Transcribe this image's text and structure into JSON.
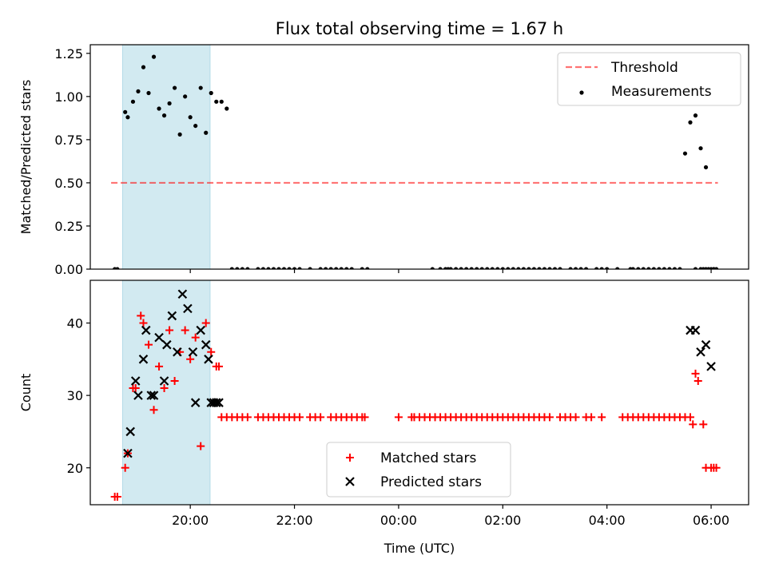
{
  "figure": {
    "title": "Flux total observing time = 1.67 h"
  },
  "colors": {
    "highlight_band": "#add8e6",
    "threshold": "#ff0000",
    "measurements": "#000000",
    "matched": "#ff0000",
    "predicted": "#000000"
  },
  "chart_data": [
    {
      "type": "scatter",
      "xlabel": "",
      "ylabel": "Matched/Predicted stars",
      "xlim": [
        -5.92,
        6.72
      ],
      "ylim": [
        0,
        1.3
      ],
      "yticks": [
        "0.00",
        "0.25",
        "0.50",
        "0.75",
        "1.00",
        "1.25"
      ],
      "ytick_values": [
        0,
        0.25,
        0.5,
        0.75,
        1.0,
        1.25
      ],
      "highlight_span": [
        -5.3,
        -3.62
      ],
      "legend": {
        "placement": "top-right",
        "entries": [
          "Threshold",
          "Measurements"
        ]
      },
      "threshold": {
        "name": "Threshold",
        "value": 0.5,
        "x_range": [
          -5.52,
          6.13
        ]
      },
      "series": [
        {
          "name": "Measurements",
          "marker": "dot",
          "x": [
            -5.45,
            -5.4,
            -5.25,
            -5.2,
            -5.1,
            -5.0,
            -4.9,
            -4.8,
            -4.7,
            -4.6,
            -4.5,
            -4.4,
            -4.3,
            -4.2,
            -4.1,
            -4.0,
            -3.9,
            -3.8,
            -3.7,
            -3.6,
            -3.5,
            -3.4,
            -3.3,
            -3.2,
            -3.1,
            -3.0,
            -2.9,
            -2.7,
            -2.6,
            -2.5,
            -2.4,
            -2.3,
            -2.2,
            -2.1,
            -2.0,
            -1.9,
            -1.7,
            -1.5,
            -1.4,
            -1.3,
            -1.2,
            -1.1,
            -1.0,
            -0.9,
            -0.7,
            -0.6,
            0.65,
            0.8,
            0.9,
            0.95,
            1.0,
            1.1,
            1.2,
            1.3,
            1.4,
            1.5,
            1.6,
            1.7,
            1.8,
            1.9,
            2.0,
            2.1,
            2.2,
            2.3,
            2.4,
            2.5,
            2.6,
            2.7,
            2.8,
            2.9,
            3.0,
            3.1,
            3.3,
            3.4,
            3.5,
            3.6,
            3.8,
            3.9,
            4.0,
            4.2,
            4.45,
            4.5,
            4.6,
            4.7,
            4.8,
            4.9,
            5.0,
            5.1,
            5.2,
            5.3,
            5.4,
            5.5,
            5.6,
            5.7,
            5.8,
            5.9,
            6.0,
            6.05
          ],
          "y": [
            0,
            0,
            0.91,
            0.88,
            0.97,
            1.03,
            1.17,
            1.02,
            1.23,
            0.93,
            0.89,
            0.96,
            1.05,
            0.78,
            1.0,
            0.88,
            0.83,
            1.05,
            0.79,
            1.02,
            0.97,
            0.97,
            0.93,
            0,
            0,
            0,
            0,
            0,
            0,
            0,
            0,
            0,
            0,
            0,
            0,
            0,
            0,
            0,
            0,
            0,
            0,
            0,
            0,
            0,
            0,
            0,
            0,
            0,
            0,
            0,
            0,
            0,
            0,
            0,
            0,
            0,
            0,
            0,
            0,
            0,
            0,
            0,
            0,
            0,
            0,
            0,
            0,
            0,
            0,
            0,
            0,
            0,
            0,
            0,
            0,
            0,
            0,
            0,
            0,
            0,
            0,
            0,
            0,
            0,
            0,
            0,
            0,
            0,
            0,
            0,
            0,
            0.67,
            0.85,
            0.89,
            0.7,
            0.59,
            0,
            0
          ],
          "x_tail": [
            5.7,
            5.8,
            5.85,
            5.9,
            5.95,
            6.05,
            6.1
          ]
        }
      ]
    },
    {
      "type": "scatter",
      "xlabel": "Time (UTC)",
      "ylabel": "Count",
      "xlim": [
        -5.92,
        6.72
      ],
      "ylim": [
        14.9,
        45.9
      ],
      "xticks": [
        "20:00",
        "22:00",
        "00:00",
        "02:00",
        "04:00",
        "06:00"
      ],
      "xtick_values": [
        -4,
        -2,
        0,
        2,
        4,
        6
      ],
      "yticks": [
        "20",
        "30",
        "40"
      ],
      "ytick_values": [
        20,
        30,
        40
      ],
      "highlight_span": [
        -5.3,
        -3.62
      ],
      "legend": {
        "placement": "bottom-center",
        "entries": [
          "Matched stars",
          "Predicted stars"
        ]
      },
      "series": [
        {
          "name": "Matched stars",
          "marker": "plus",
          "x": [
            -5.45,
            -5.4,
            -5.25,
            -5.2,
            -5.1,
            -5.05,
            -4.95,
            -4.9,
            -4.8,
            -4.7,
            -4.6,
            -4.5,
            -4.4,
            -4.3,
            -4.2,
            -4.1,
            -4.0,
            -3.9,
            -3.8,
            -3.7,
            -3.6,
            -3.5,
            -3.45,
            -3.4,
            -3.3,
            -3.2,
            -3.1,
            -3.0,
            -2.9,
            -2.7,
            -2.6,
            -2.5,
            -2.4,
            -2.3,
            -2.2,
            -2.1,
            -2.0,
            -1.9,
            -1.7,
            -1.6,
            -1.3,
            -1.2,
            -1.1,
            -1.0,
            -0.9,
            -0.8,
            -0.7,
            -1.5,
            -0.65,
            0.0,
            0.25,
            0.3,
            0.4,
            0.5,
            0.6,
            0.7,
            0.8,
            0.9,
            1.0,
            1.1,
            1.2,
            1.3,
            1.4,
            1.5,
            1.6,
            1.7,
            1.8,
            1.9,
            2.0,
            2.1,
            2.2,
            2.3,
            2.4,
            2.5,
            2.6,
            2.7,
            2.8,
            2.9,
            3.1,
            3.2,
            3.3,
            3.4,
            3.6,
            3.7,
            3.9,
            4.3,
            4.4,
            4.5,
            4.6,
            4.7,
            4.8,
            4.9,
            5.0,
            5.1,
            5.2,
            5.3,
            5.4,
            5.5,
            5.6,
            5.65,
            5.7,
            5.75,
            5.85,
            5.9,
            6.0,
            6.05,
            6.1
          ],
          "y": [
            16,
            16,
            20,
            22,
            31,
            31,
            41,
            40,
            37,
            28,
            34,
            31,
            39,
            32,
            36,
            39,
            35,
            38,
            23,
            40,
            36,
            34,
            34,
            27,
            27,
            27,
            27,
            27,
            27,
            27,
            27,
            27,
            27,
            27,
            27,
            27,
            27,
            27,
            27,
            27,
            27,
            27,
            27,
            27,
            27,
            27,
            27,
            27,
            27,
            27,
            27,
            27,
            27,
            27,
            27,
            27,
            27,
            27,
            27,
            27,
            27,
            27,
            27,
            27,
            27,
            27,
            27,
            27,
            27,
            27,
            27,
            27,
            27,
            27,
            27,
            27,
            27,
            27,
            27,
            27,
            27,
            27,
            27,
            27,
            27,
            27,
            27,
            27,
            27,
            27,
            27,
            27,
            27,
            27,
            27,
            27,
            27,
            27,
            27,
            26,
            33,
            32,
            26,
            20,
            20,
            20,
            20
          ]
        },
        {
          "name": "Predicted stars",
          "marker": "x",
          "x": [
            -5.2,
            -5.15,
            -5.05,
            -5.0,
            -4.9,
            -4.85,
            -4.75,
            -4.7,
            -4.6,
            -4.5,
            -4.45,
            -4.35,
            -4.25,
            -4.15,
            -4.05,
            -3.95,
            -3.9,
            -3.8,
            -3.7,
            -3.65,
            -3.6,
            -3.55,
            -3.5,
            -3.45,
            5.6,
            5.7,
            5.8,
            5.9,
            6.0
          ],
          "y": [
            22,
            25,
            32,
            30,
            35,
            39,
            30,
            30,
            38,
            32,
            37,
            41,
            36,
            44,
            42,
            36,
            29,
            39,
            37,
            35,
            29,
            29,
            29,
            29,
            39,
            39,
            36,
            37,
            34
          ]
        }
      ]
    }
  ]
}
